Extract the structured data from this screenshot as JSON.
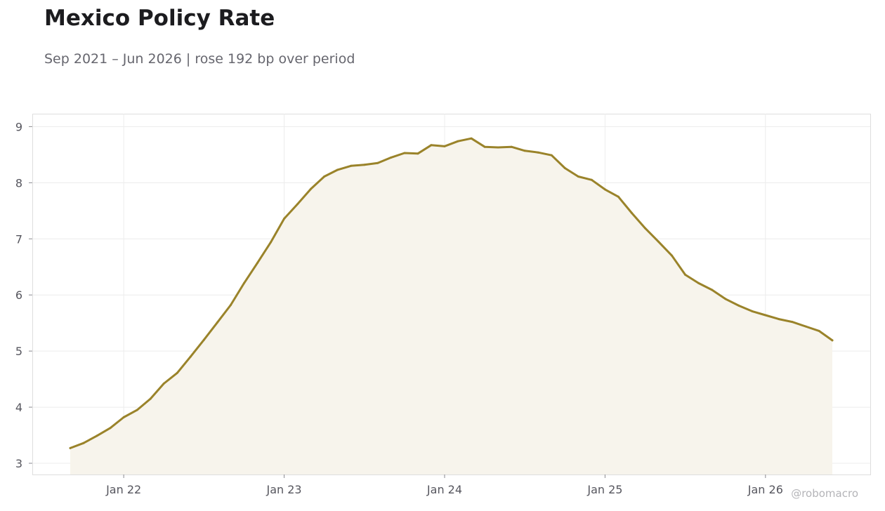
{
  "header": {
    "title": "Mexico Policy Rate",
    "subtitle": "Sep 2021 – Jun 2026 | rose 192 bp over period",
    "watermark": "@robomacro"
  },
  "colors": {
    "line": "#9a832a",
    "fill": "#f7f4ec",
    "grid": "#ececec",
    "frame": "#dedede"
  },
  "chart_data": {
    "type": "area",
    "title": "Mexico Policy Rate",
    "subtitle": "Sep 2021 – Jun 2026 | rose 192 bp over period",
    "xlabel": "",
    "ylabel": "",
    "x_start": "2021-09",
    "x_end": "2026-06",
    "ylim": [
      2.8,
      9.23
    ],
    "yticks": [
      3,
      4,
      5,
      6,
      7,
      8,
      9
    ],
    "xticks": [
      {
        "label": "Jan 22",
        "date": "2022-01"
      },
      {
        "label": "Jan 23",
        "date": "2023-01"
      },
      {
        "label": "Jan 24",
        "date": "2024-01"
      },
      {
        "label": "Jan 25",
        "date": "2025-01"
      },
      {
        "label": "Jan 26",
        "date": "2026-01"
      }
    ],
    "grid": true,
    "legend": "none",
    "series": [
      {
        "dates": [
          "2021-09",
          "2021-10",
          "2021-11",
          "2021-12",
          "2022-01",
          "2022-02",
          "2022-03",
          "2022-04",
          "2022-05",
          "2022-06",
          "2022-07",
          "2022-08",
          "2022-09",
          "2022-10",
          "2022-11",
          "2022-12",
          "2023-01",
          "2023-02",
          "2023-03",
          "2023-04",
          "2023-05",
          "2023-06",
          "2023-07",
          "2023-08",
          "2023-09",
          "2023-10",
          "2023-11",
          "2023-12",
          "2024-01",
          "2024-02",
          "2024-03",
          "2024-04",
          "2024-05",
          "2024-06",
          "2024-07",
          "2024-08",
          "2024-09",
          "2024-10",
          "2024-11",
          "2024-12",
          "2025-01",
          "2025-02",
          "2025-03",
          "2025-04",
          "2025-05",
          "2025-06",
          "2025-07",
          "2025-08",
          "2025-09",
          "2025-10",
          "2025-11",
          "2025-12",
          "2026-01",
          "2026-02",
          "2026-03",
          "2026-04",
          "2026-05",
          "2026-06"
        ],
        "values": [
          3.27,
          3.36,
          3.49,
          3.63,
          3.82,
          3.95,
          4.15,
          4.42,
          4.61,
          4.9,
          5.2,
          5.51,
          5.82,
          6.21,
          6.57,
          6.94,
          7.36,
          7.62,
          7.89,
          8.11,
          8.23,
          8.3,
          8.32,
          8.35,
          8.45,
          8.53,
          8.52,
          8.67,
          8.65,
          8.74,
          8.79,
          8.64,
          8.63,
          8.64,
          8.57,
          8.54,
          8.49,
          8.26,
          8.11,
          8.05,
          7.88,
          7.75,
          7.46,
          7.19,
          6.95,
          6.7,
          6.36,
          6.21,
          6.09,
          5.93,
          5.81,
          5.71,
          5.64,
          5.57,
          5.52,
          5.44,
          5.36,
          5.19
        ]
      }
    ]
  }
}
